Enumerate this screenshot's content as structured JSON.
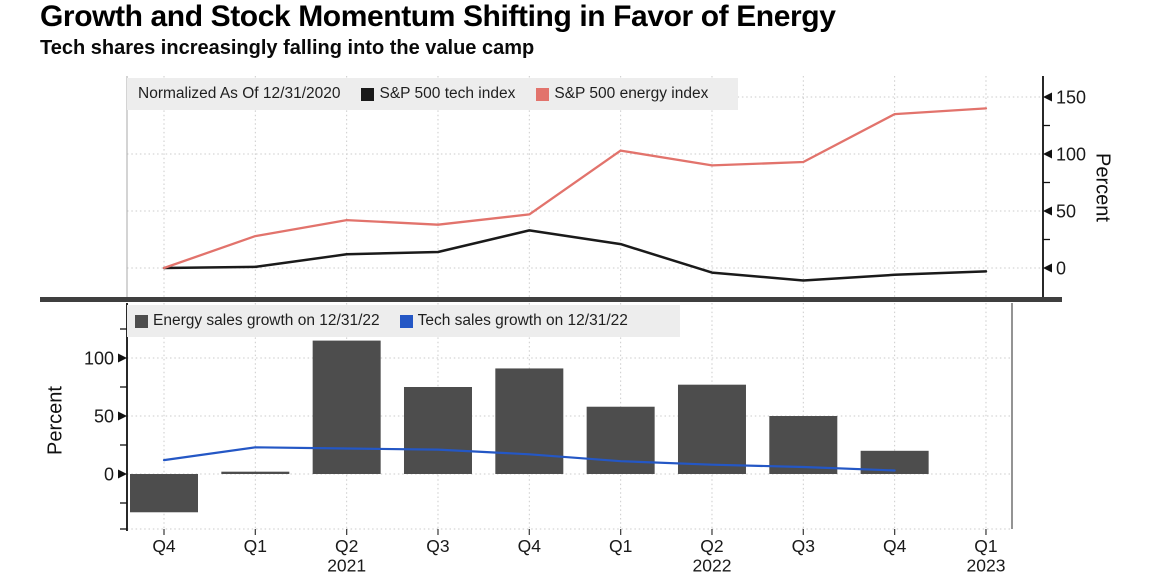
{
  "header": {
    "title": "Growth and Stock Momentum Shifting in Favor of Energy",
    "subtitle": "Tech shares increasingly falling into the value camp"
  },
  "colors": {
    "tech_index_line": "#1a1a1a",
    "energy_index_line": "#e2736c",
    "energy_bars": "#4d4d4d",
    "tech_sales_line": "#2457c5",
    "legend_background": "#ededed",
    "gridline": "#cbcbcb",
    "divider": "#3f3f3f",
    "axis": "#111111"
  },
  "x_axis": {
    "quarter_labels": [
      "Q4",
      "Q1",
      "Q2",
      "Q3",
      "Q4",
      "Q1",
      "Q2",
      "Q3",
      "Q4",
      "Q1"
    ],
    "year_labels": [
      {
        "text": "2021",
        "quarter_index": 2
      },
      {
        "text": "2022",
        "quarter_index": 6
      },
      {
        "text": "2023",
        "quarter_index": 9
      }
    ]
  },
  "chart_data": [
    {
      "type": "line",
      "note": "Normalized As Of 12/31/2020",
      "categories": [
        "Q4 2020",
        "Q1 2021",
        "Q2 2021",
        "Q3 2021",
        "Q4 2021",
        "Q1 2022",
        "Q2 2022",
        "Q3 2022",
        "Q4 2022",
        "Q1 2023"
      ],
      "series": [
        {
          "name": "S&P 500 tech index",
          "color_key": "tech_index_line",
          "values": [
            0,
            1,
            12,
            14,
            33,
            21,
            -4,
            -11,
            -6,
            -3
          ]
        },
        {
          "name": "S&P 500 energy index",
          "color_key": "energy_index_line",
          "values": [
            0,
            28,
            42,
            38,
            47,
            103,
            90,
            93,
            135,
            140
          ]
        }
      ],
      "ylabel": "Percent",
      "y_axis_side": "right",
      "yticks_major": [
        0,
        50,
        100,
        150
      ],
      "yticks_minor": [
        25,
        75,
        125
      ],
      "ylim": [
        -25,
        168
      ],
      "grid": true,
      "legend_position": "top-left"
    },
    {
      "type": "bar-line-combo",
      "categories": [
        "Q4 2020",
        "Q1 2021",
        "Q2 2021",
        "Q3 2021",
        "Q4 2021",
        "Q1 2022",
        "Q2 2022",
        "Q3 2022",
        "Q4 2022",
        "Q1 2023"
      ],
      "series": [
        {
          "name": "Energy sales growth on 12/31/22",
          "type": "bar",
          "color_key": "energy_bars",
          "values": [
            -33,
            2,
            115,
            75,
            91,
            58,
            77,
            50,
            20,
            null
          ]
        },
        {
          "name": "Tech sales growth on 12/31/22",
          "type": "line",
          "color_key": "tech_sales_line",
          "values": [
            12,
            23,
            22,
            21,
            17,
            11,
            8,
            6,
            3,
            null
          ]
        }
      ],
      "ylabel": "Percent",
      "y_axis_side": "left",
      "yticks_major": [
        0,
        50,
        100
      ],
      "yticks_minor": [
        -25,
        25,
        75,
        125
      ],
      "ylim": [
        -48,
        148
      ],
      "grid": true,
      "legend_position": "top-left"
    }
  ]
}
